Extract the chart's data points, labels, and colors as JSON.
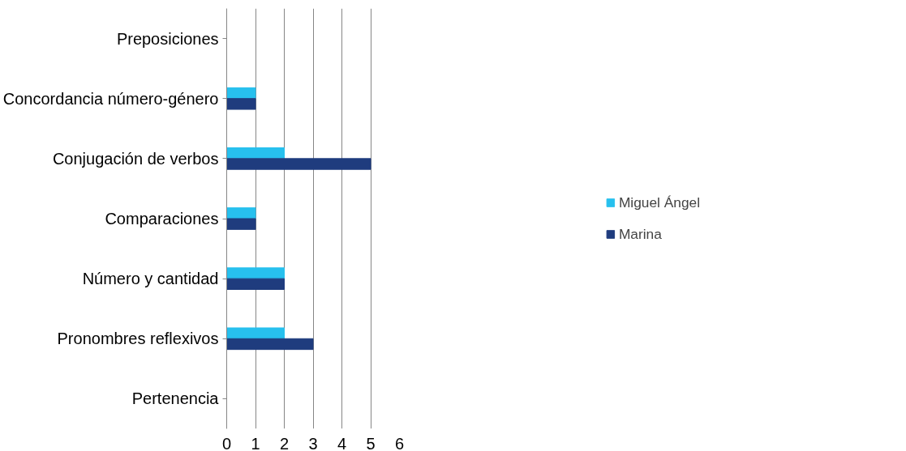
{
  "chart_data": {
    "type": "bar",
    "orientation": "horizontal",
    "categories": [
      "Preposiciones",
      "Concordancia número-género",
      "Conjugación de verbos",
      "Comparaciones",
      "Número y cantidad",
      "Pronombres reflexivos",
      "Pertenencia"
    ],
    "series": [
      {
        "name": "Miguel Ángel",
        "color": "#27c0ee",
        "values": [
          0,
          1,
          2,
          1,
          2,
          2,
          0
        ]
      },
      {
        "name": "Marina",
        "color": "#1f3c7e",
        "values": [
          0,
          1,
          5,
          1,
          2,
          3,
          0
        ]
      }
    ],
    "xlim": [
      0,
      6
    ],
    "xticks": [
      0,
      1,
      2,
      3,
      4,
      5,
      6
    ],
    "grid": "x",
    "legend": "right"
  }
}
